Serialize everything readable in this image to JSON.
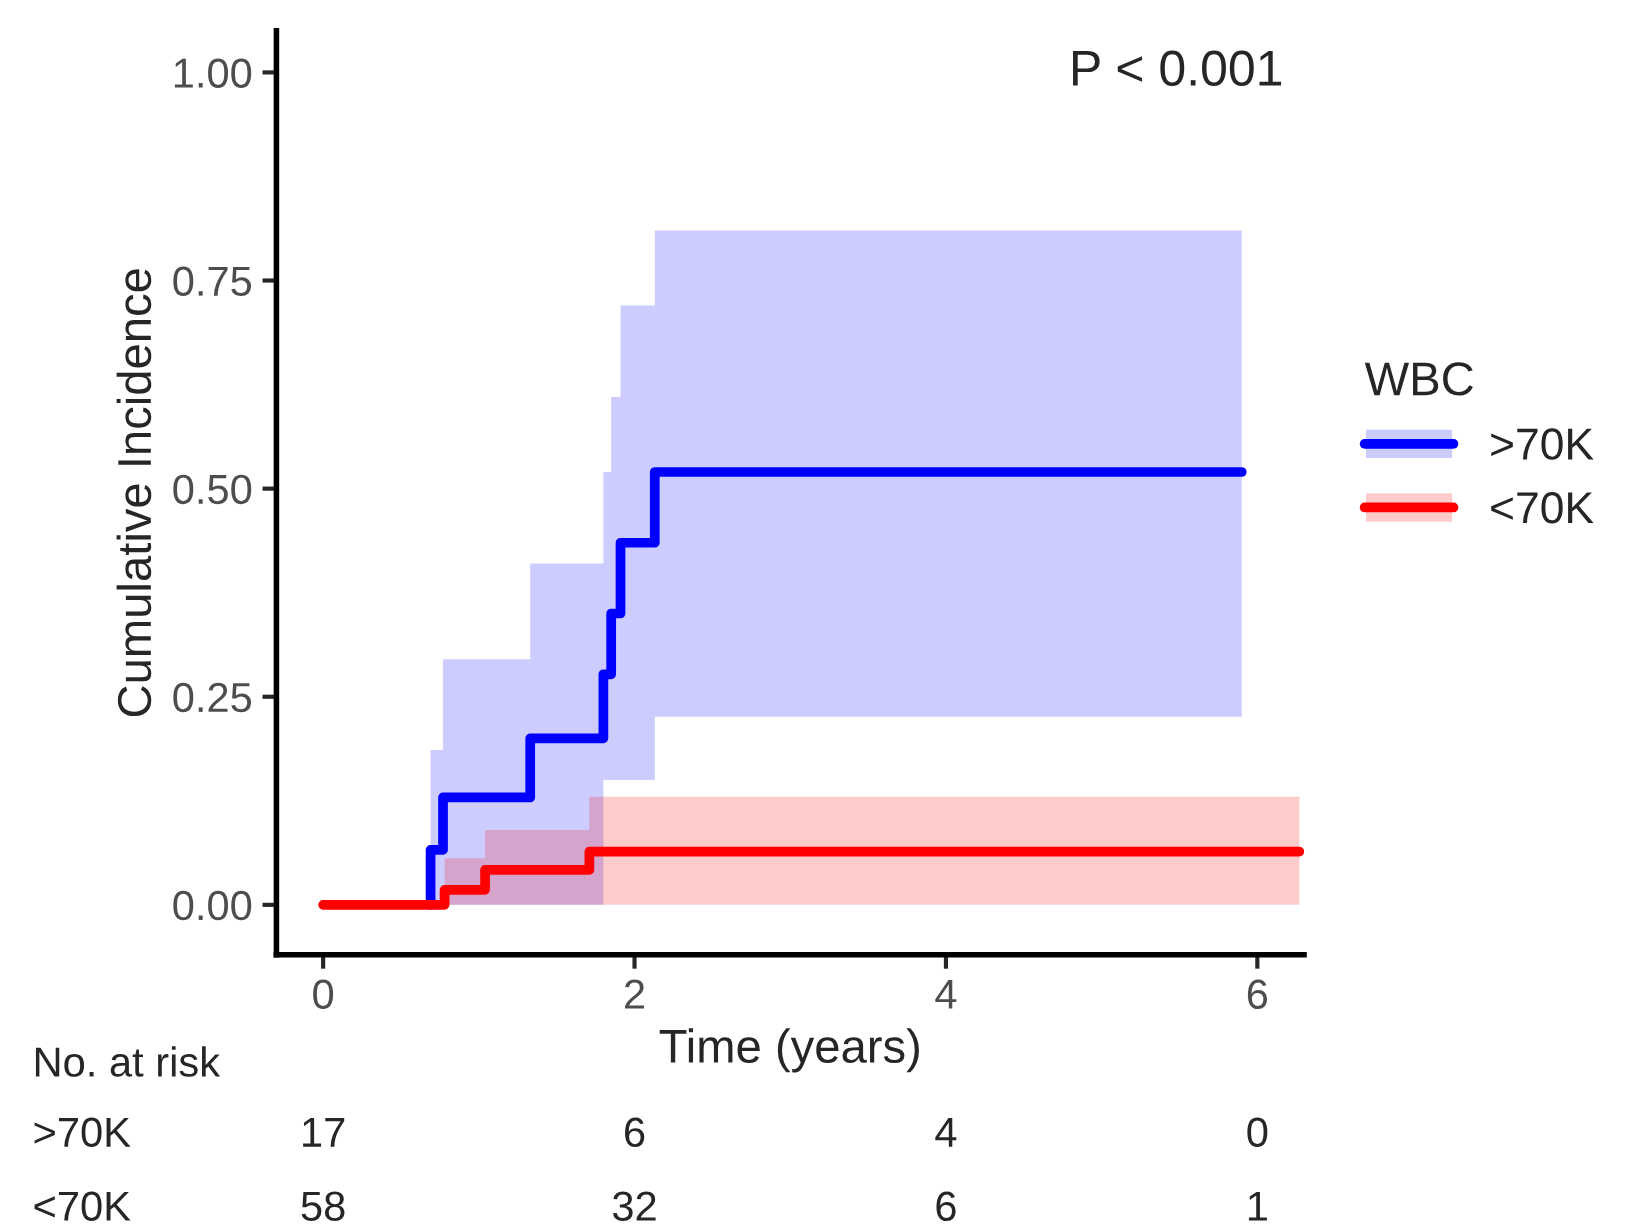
{
  "chart_data": {
    "type": "step",
    "xlabel": "Time (years)",
    "ylabel": "Cumulative Incidence",
    "legend_title": "WBC",
    "legend": "right",
    "grid": false,
    "xlim": [
      -0.3,
      6.3
    ],
    "xticks": [
      0,
      2,
      4,
      6
    ],
    "ylim": [
      -0.06,
      1.05
    ],
    "yticks": [
      {
        "value": 0,
        "label": "0.00"
      },
      {
        "value": 0.25,
        "label": "0.25"
      },
      {
        "value": 0.5,
        "label": "0.50"
      },
      {
        "value": 0.75,
        "label": "0.75"
      },
      {
        "value": 1,
        "label": "1.00"
      }
    ],
    "series": [
      {
        "name": ">70K",
        "color": "#0000ff",
        "x": [
          0.69,
          0.69,
          0.77,
          1.33,
          1.8,
          1.85,
          1.91,
          2.13,
          5.9
        ],
        "values": [
          0,
          0.066,
          0.129,
          0.2,
          0.277,
          0.35,
          0.435,
          0.52,
          0.52
        ],
        "lower": [
          0,
          0,
          0,
          0,
          0.15,
          0.15,
          0.15,
          0.226,
          0.226
        ],
        "upper": [
          0.186,
          0.186,
          0.295,
          0.41,
          0.52,
          0.61,
          0.72,
          0.81,
          0.81
        ]
      },
      {
        "name": "<70K",
        "color": "#ff0000",
        "x": [
          0,
          0.78,
          1.04,
          1.71,
          6.27
        ],
        "values": [
          0,
          0.018,
          0.042,
          0.064,
          0.064
        ],
        "lower": [
          0,
          0,
          0,
          0,
          0
        ],
        "upper": [
          0,
          0.056,
          0.09,
          0.13,
          0.13
        ]
      }
    ],
    "annotations": [
      "P < 0.001",
      "No. at risk",
      ">70K",
      "17",
      "6",
      "4",
      "0",
      "<70K",
      "58",
      "32",
      "6",
      "1"
    ]
  }
}
